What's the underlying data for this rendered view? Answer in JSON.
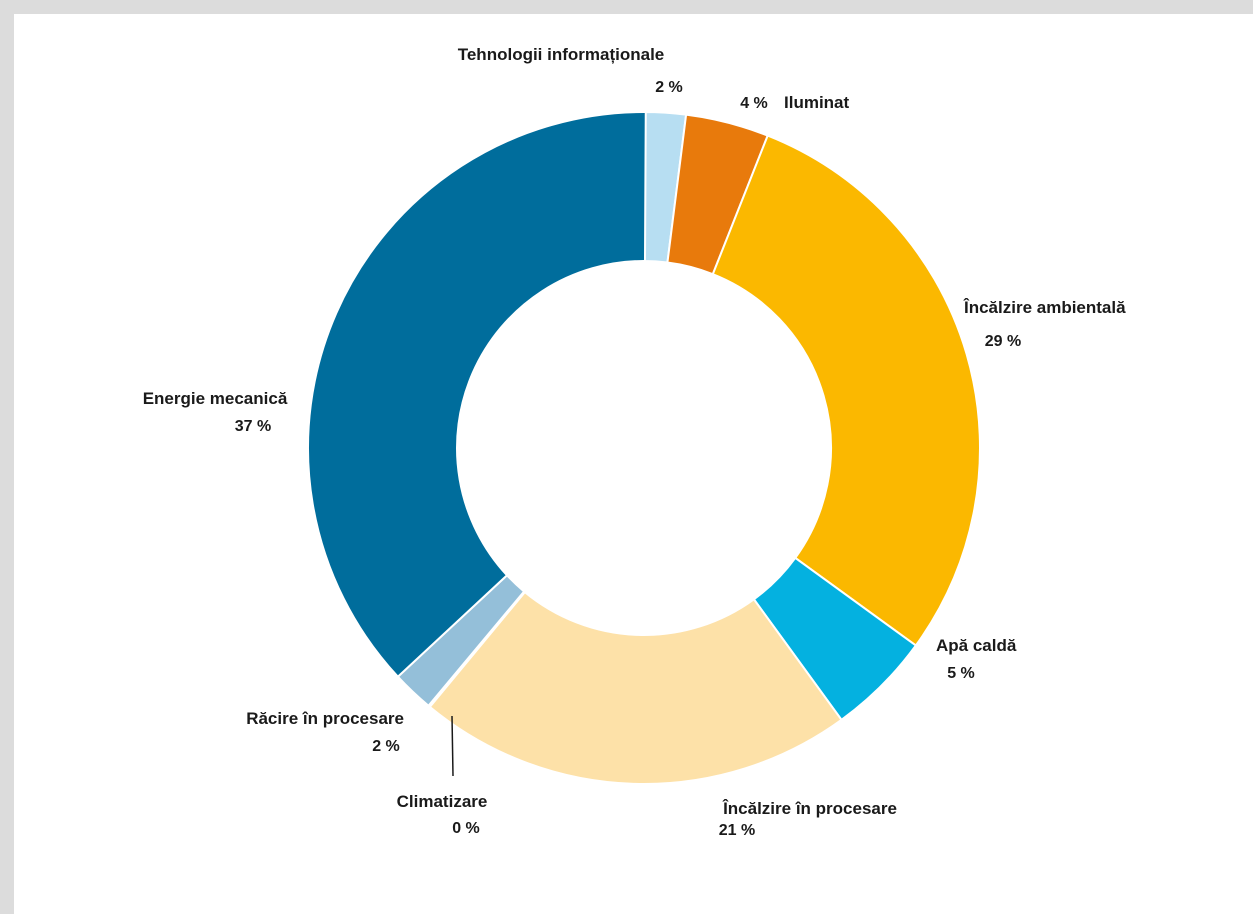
{
  "chart_data": {
    "type": "pie",
    "donut": true,
    "unit": "%",
    "slices": [
      {
        "name": "Tehnologii informaționale",
        "value": 2,
        "value_label": "2 %",
        "color": "#b7def2"
      },
      {
        "name": "Iluminat",
        "value": 4,
        "value_label": "4 %",
        "color": "#e87a0c"
      },
      {
        "name": "Încălzire ambientală",
        "value": 29,
        "value_label": "29 %",
        "color": "#fbb800"
      },
      {
        "name": "Apă caldă",
        "value": 5,
        "value_label": "5 %",
        "color": "#04b1e0"
      },
      {
        "name": "Încălzire în procesare",
        "value": 21,
        "value_label": "21 %",
        "color": "#fde1a8"
      },
      {
        "name": "Climatizare",
        "value": 0,
        "value_label": "0 %",
        "color": "#0a3350"
      },
      {
        "name": "Răcire în procesare",
        "value": 2,
        "value_label": "2 %",
        "color": "#94bfd9"
      },
      {
        "name": "Energie mecanică",
        "value": 37,
        "value_label": "37 %",
        "color": "#006d9c"
      }
    ]
  }
}
